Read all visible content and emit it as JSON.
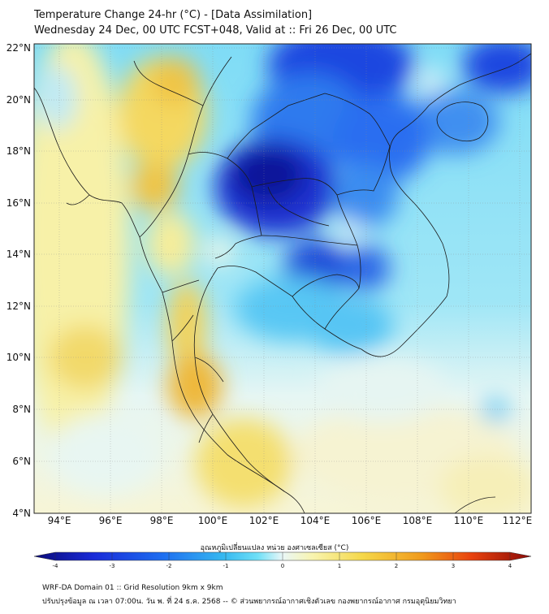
{
  "header": {
    "title_line1": "Temperature Change 24-hr (°C) - [Data Assimilation]",
    "title_line2": "Wednesday 24 Dec, 00 UTC FCST+048, Valid at :: Fri 26 Dec, 00 UTC"
  },
  "map": {
    "lat_labels": [
      "22°N",
      "20°N",
      "18°N",
      "16°N",
      "14°N",
      "12°N",
      "10°N",
      "8°N",
      "6°N",
      "4°N"
    ],
    "lon_labels": [
      "94°E",
      "96°E",
      "98°E",
      "100°E",
      "102°E",
      "104°E",
      "106°E",
      "108°E",
      "110°E",
      "112°E"
    ],
    "lat_range": [
      4,
      22.2
    ],
    "lon_range": [
      93,
      112.5
    ]
  },
  "colorbar": {
    "title": "อุณหภูมิเปลี่ยนแปลง หน่วย องศาเซลเซียส (°C)",
    "ticks": [
      "-4",
      "-3",
      "-2",
      "-1",
      "0",
      "1",
      "2",
      "3",
      "4"
    ],
    "range": [
      -4,
      4
    ],
    "colors": [
      "#0a0a78",
      "#1a2bd8",
      "#1e6ff0",
      "#36b8f0",
      "#6fe0f7",
      "#eaf7f7",
      "#f8f4b0",
      "#f5d84a",
      "#f09a1c",
      "#e8420e",
      "#8a0a08"
    ]
  },
  "footer": {
    "line1": "WRF-DA Domain 01 :: Grid Resolution 9km x 9km",
    "line2": "ปรับปรุงข้อมูล ณ เวลา 07:00น. วัน พ. ที่ 24 ธ.ค. 2568 -- © ส่วนพยากรณ์อากาศเชิงตัวเลข กองพยากรณ์อากาศ กรมอุตุนิยมวิทยา"
  }
}
